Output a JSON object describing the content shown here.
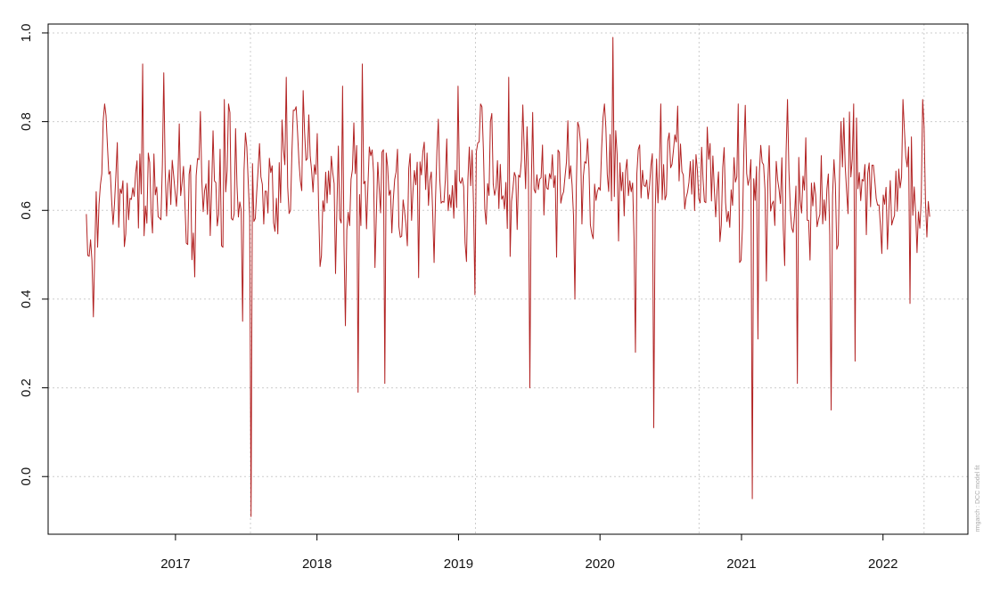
{
  "chart_data": {
    "type": "line",
    "title": "",
    "xlabel": "",
    "ylabel": "",
    "xlim": [
      2016.1,
      2022.6
    ],
    "ylim": [
      -0.13,
      1.02
    ],
    "grid": true,
    "x_ticks": [
      2017,
      2018,
      2019,
      2020,
      2021,
      2022
    ],
    "x_tick_labels": [
      "2017",
      "2018",
      "2019",
      "2020",
      "2021",
      "2022"
    ],
    "y_ticks": [
      0.0,
      0.2,
      0.4,
      0.6,
      0.8,
      1.0
    ],
    "y_tick_labels": [
      "0.0",
      "0.2",
      "0.4",
      "0.6",
      "0.8",
      "1.0"
    ],
    "v_grid_x": [
      2017.53,
      2019.12,
      2020.7,
      2022.29
    ],
    "series": [
      {
        "color": "#b22222",
        "start_x": 2016.37,
        "end_x": 2022.33,
        "points": 600,
        "baseline": 0.655,
        "noise_sd": 0.075,
        "seed": 20160512,
        "events": [
          {
            "x": 2016.42,
            "y": 0.36
          },
          {
            "x": 2016.77,
            "y": 0.93
          },
          {
            "x": 2016.92,
            "y": 0.91
          },
          {
            "x": 2017.14,
            "y": 0.45
          },
          {
            "x": 2017.35,
            "y": 0.85
          },
          {
            "x": 2017.47,
            "y": 0.35
          },
          {
            "x": 2017.53,
            "y": -0.09
          },
          {
            "x": 2017.78,
            "y": 0.9
          },
          {
            "x": 2017.9,
            "y": 0.87
          },
          {
            "x": 2018.18,
            "y": 0.88
          },
          {
            "x": 2018.2,
            "y": 0.34
          },
          {
            "x": 2018.29,
            "y": 0.19
          },
          {
            "x": 2018.32,
            "y": 0.93
          },
          {
            "x": 2018.48,
            "y": 0.21
          },
          {
            "x": 2019.0,
            "y": 0.88
          },
          {
            "x": 2019.12,
            "y": 0.41
          },
          {
            "x": 2019.35,
            "y": 0.9
          },
          {
            "x": 2019.5,
            "y": 0.2
          },
          {
            "x": 2019.82,
            "y": 0.4
          },
          {
            "x": 2020.09,
            "y": 0.99
          },
          {
            "x": 2020.25,
            "y": 0.28
          },
          {
            "x": 2020.38,
            "y": 0.11
          },
          {
            "x": 2020.43,
            "y": 0.84
          },
          {
            "x": 2020.98,
            "y": 0.84
          },
          {
            "x": 2021.08,
            "y": -0.05
          },
          {
            "x": 2021.12,
            "y": 0.31
          },
          {
            "x": 2021.33,
            "y": 0.85
          },
          {
            "x": 2021.39,
            "y": 0.21
          },
          {
            "x": 2021.63,
            "y": 0.15
          },
          {
            "x": 2021.8,
            "y": 0.26
          },
          {
            "x": 2022.14,
            "y": 0.85
          },
          {
            "x": 2022.19,
            "y": 0.39
          },
          {
            "x": 2022.28,
            "y": 0.85
          },
          {
            "x": 2022.31,
            "y": 0.54
          }
        ]
      }
    ]
  },
  "credit": "rmgarch : DCC model fit"
}
